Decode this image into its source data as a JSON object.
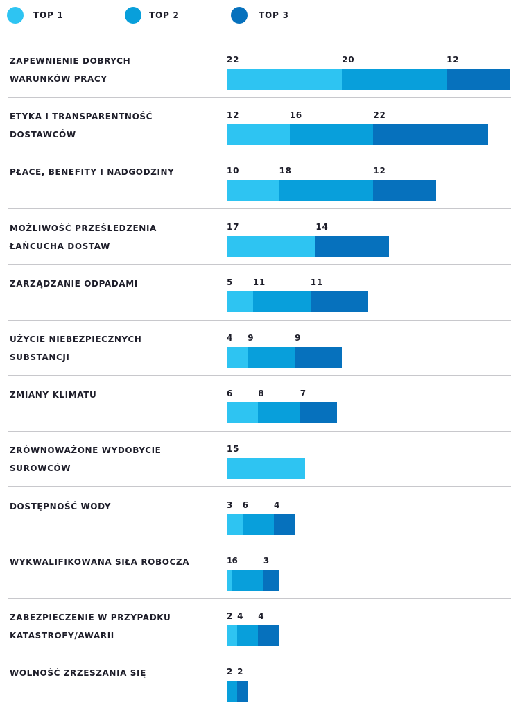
{
  "chart_data": {
    "type": "stacked-bar",
    "series": [
      {
        "name": "TOP 1",
        "color": "#2ec4f2",
        "values": [
          22,
          12,
          10,
          17,
          5,
          4,
          6,
          15,
          3,
          1,
          2,
          null
        ]
      },
      {
        "name": "TOP 2",
        "color": "#089fdb",
        "values": [
          20,
          16,
          18,
          null,
          11,
          9,
          8,
          null,
          6,
          6,
          4,
          2
        ]
      },
      {
        "name": "TOP 3",
        "color": "#0671bd",
        "values": [
          12,
          22,
          12,
          14,
          11,
          9,
          7,
          null,
          4,
          3,
          4,
          2
        ]
      }
    ],
    "categories": [
      "ZAPEWNIENIE DOBRYCH\nWARUNKÓW PRACY",
      "ETYKA I TRANSPARENTNOŚĆ\nDOSTAWCÓW",
      "PŁACE, BENEFITY I NADGODZINY",
      "MOŻLIWOŚĆ PRZEŚLEDZENIA\nŁAŃCUCHA DOSTAW",
      "ZARZĄDZANIE ODPADAMI",
      "UŻYCIE NIEBEZPIECZNYCH\nSUBSTANCJI",
      "ZMIANY KLIMATU",
      "ZRÓWNOWAŻONE WYDOBYCIE\nSUROWCÓW",
      "DOSTĘPNOŚĆ WODY",
      "WYKWALIFIKOWANA SIŁA ROBOCZA",
      "ZABEZPIECZENIE W PRZYPADKU\nKATASTROFY/AWARII",
      "WOLNOŚĆ ZRZESZANIA SIĘ"
    ]
  }
}
